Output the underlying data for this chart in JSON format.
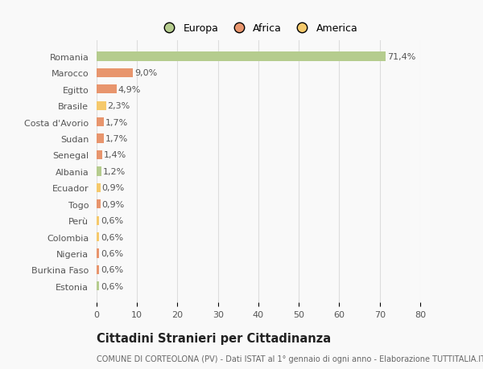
{
  "countries": [
    "Romania",
    "Marocco",
    "Egitto",
    "Brasile",
    "Costa d'Avorio",
    "Sudan",
    "Senegal",
    "Albania",
    "Ecuador",
    "Togo",
    "Perù",
    "Colombia",
    "Nigeria",
    "Burkina Faso",
    "Estonia"
  ],
  "values": [
    71.4,
    9.0,
    4.9,
    2.3,
    1.7,
    1.7,
    1.4,
    1.2,
    0.9,
    0.9,
    0.6,
    0.6,
    0.6,
    0.6,
    0.6
  ],
  "labels": [
    "71,4%",
    "9,0%",
    "4,9%",
    "2,3%",
    "1,7%",
    "1,7%",
    "1,4%",
    "1,2%",
    "0,9%",
    "0,9%",
    "0,6%",
    "0,6%",
    "0,6%",
    "0,6%",
    "0,6%"
  ],
  "colors": [
    "#b5cc8e",
    "#e8956d",
    "#e8956d",
    "#f5c96b",
    "#e8956d",
    "#e8956d",
    "#e8956d",
    "#b5cc8e",
    "#f5c96b",
    "#e8956d",
    "#f5c96b",
    "#f5c96b",
    "#e8956d",
    "#e8956d",
    "#b5cc8e"
  ],
  "legend_labels": [
    "Europa",
    "Africa",
    "America"
  ],
  "legend_colors": [
    "#b5cc8e",
    "#e8956d",
    "#f5c96b"
  ],
  "title": "Cittadini Stranieri per Cittadinanza",
  "subtitle": "COMUNE DI CORTEOLONA (PV) - Dati ISTAT al 1° gennaio di ogni anno - Elaborazione TUTTITALIA.IT",
  "xlim": [
    0,
    80
  ],
  "xticks": [
    0,
    10,
    20,
    30,
    40,
    50,
    60,
    70,
    80
  ],
  "bg_color": "#f9f9f9",
  "grid_color": "#dddddd",
  "bar_height": 0.55,
  "label_fontsize": 8.0,
  "ytick_fontsize": 8.0,
  "xtick_fontsize": 8.0,
  "title_fontsize": 10.5,
  "subtitle_fontsize": 7.0,
  "legend_fontsize": 9.0
}
